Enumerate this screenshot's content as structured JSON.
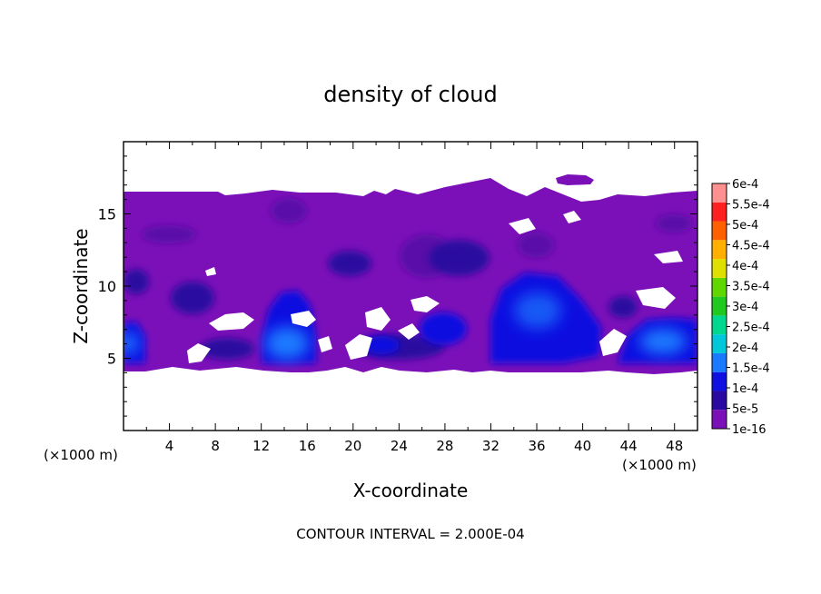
{
  "chart_data": {
    "type": "heatmap",
    "title": "density of cloud",
    "xlabel": "X-coordinate",
    "ylabel": "Z-coordinate",
    "x_unit_left": "(×1000 m)",
    "x_unit_right": "(×1000 m)",
    "xlim": [
      0,
      50
    ],
    "ylim": [
      0,
      20
    ],
    "x_ticks": [
      4,
      8,
      12,
      16,
      20,
      24,
      28,
      32,
      36,
      40,
      44,
      48
    ],
    "x_tick_labels": [
      "4",
      "8",
      "12",
      "16",
      "20",
      "24",
      "28",
      "32",
      "36",
      "40",
      "44",
      "48"
    ],
    "y_ticks": [
      5,
      10,
      15
    ],
    "y_tick_labels": [
      "5",
      "10",
      "15"
    ],
    "footer": "CONTOUR INTERVAL = 2.000E-04",
    "colorbar": {
      "levels": [
        1e-16,
        5e-05,
        0.0001,
        0.00015,
        0.0002,
        0.00025,
        0.0003,
        0.00035,
        0.0004,
        0.00045,
        0.0005,
        0.00055,
        0.0006
      ],
      "labels": [
        "1e-16",
        "5e-5",
        "1e-4",
        "1.5e-4",
        "2e-4",
        "2.5e-4",
        "3e-4",
        "3.5e-4",
        "4e-4",
        "4.5e-4",
        "5e-4",
        "5.5e-4",
        "6e-4"
      ],
      "colors": [
        "#7b10b8",
        "#2a0aa0",
        "#1010e0",
        "#1a7aff",
        "#00c8d8",
        "#00d890",
        "#20c820",
        "#60d800",
        "#e0e000",
        "#ffb000",
        "#ff6000",
        "#ff2020",
        "#ff9090"
      ]
    },
    "cloud_band_z": [
      4.2,
      16.5
    ],
    "cells": [
      {
        "x": 14.5,
        "z": 6.5,
        "value": 0.00015
      },
      {
        "x": 35,
        "z": 8,
        "value": 0.0001
      },
      {
        "x": 47,
        "z": 6,
        "value": 0.00015
      },
      {
        "x": 1,
        "z": 6,
        "value": 0.00015
      },
      {
        "x": 28,
        "z": 7,
        "value": 0.0001
      },
      {
        "x": 29,
        "z": 11.5,
        "value": 5e-05
      },
      {
        "x": 19,
        "z": 11.5,
        "value": 5e-05
      },
      {
        "x": 22,
        "z": 5.5,
        "value": 5e-05
      }
    ]
  }
}
